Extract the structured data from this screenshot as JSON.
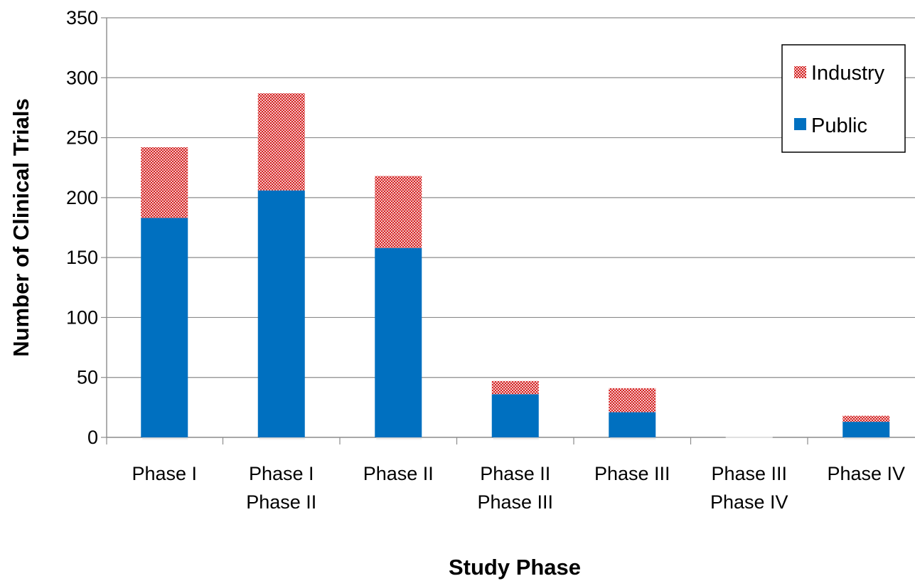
{
  "chart_data": {
    "type": "bar",
    "stacked": true,
    "title": "",
    "xlabel": "Study Phase",
    "ylabel": "Number of Clinical Trials",
    "ylim": [
      0,
      350
    ],
    "yticks": [
      0,
      50,
      100,
      150,
      200,
      250,
      300,
      350
    ],
    "grid": true,
    "legend_position": "top-right",
    "categories": [
      [
        "Phase I"
      ],
      [
        "Phase I",
        "Phase II"
      ],
      [
        "Phase II"
      ],
      [
        "Phase II",
        "Phase III"
      ],
      [
        "Phase III"
      ],
      [
        "Phase III",
        "Phase IV"
      ],
      [
        "Phase IV"
      ]
    ],
    "series": [
      {
        "name": "Public",
        "color": "#0070C0",
        "values": [
          183,
          206,
          158,
          36,
          21,
          0,
          13
        ]
      },
      {
        "name": "Industry",
        "color": "#E03030",
        "pattern": "dotted",
        "values": [
          59,
          81,
          60,
          11,
          20,
          0,
          5
        ]
      }
    ],
    "legend": [
      "Industry",
      "Public"
    ]
  }
}
